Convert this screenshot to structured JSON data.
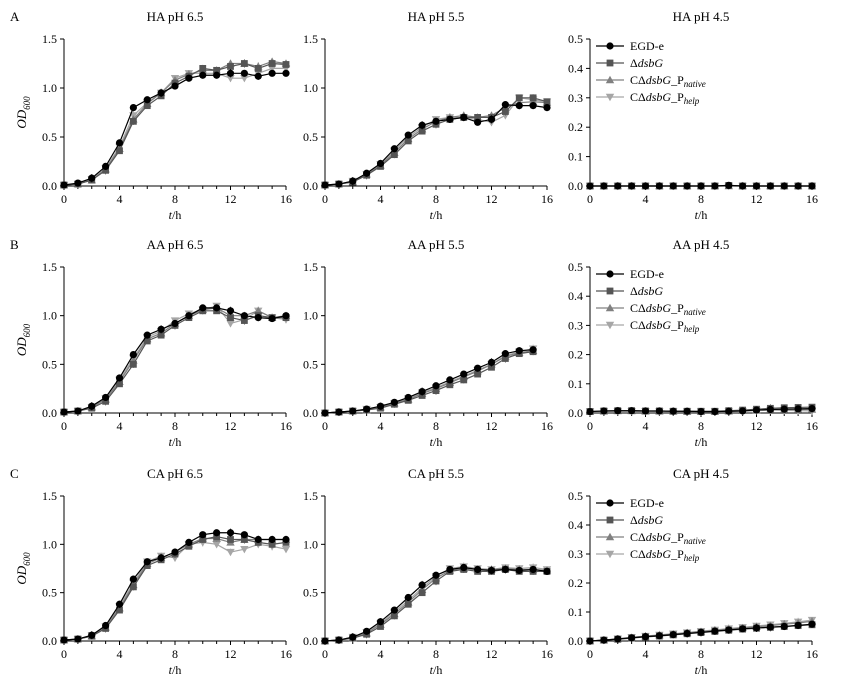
{
  "figure": {
    "row_letters": [
      "A",
      "B",
      "C"
    ],
    "y_axis_label": "OD",
    "y_axis_label_sub": "600",
    "x_axis_label_var": "t",
    "x_axis_label_unit": "/h",
    "legend": [
      {
        "main": "EGD-e",
        "italic": "",
        "suffix": "",
        "sub": "",
        "color": "#000000",
        "marker": "circle"
      },
      {
        "main": "Δ",
        "italic": "dsbG",
        "suffix": "",
        "sub": "",
        "color": "#555555",
        "marker": "square"
      },
      {
        "main": "CΔ",
        "italic": "dsbG",
        "suffix": "_P",
        "sub": "native",
        "color": "#808080",
        "marker": "triangle-up"
      },
      {
        "main": "CΔ",
        "italic": "dsbG",
        "suffix": "_P",
        "sub": "help",
        "color": "#a6a6a6",
        "marker": "triangle-down"
      }
    ]
  },
  "chart_data": [
    {
      "type": "line",
      "title": "HA pH 6.5",
      "ylim": [
        0,
        1.5
      ],
      "yticks": [
        "0.0",
        "0.5",
        "1.0",
        "1.5"
      ],
      "xlim": [
        0,
        16
      ],
      "xticks": [
        0,
        4,
        8,
        12,
        16
      ],
      "x": [
        0,
        1,
        2,
        3,
        4,
        5,
        6,
        7,
        8,
        9,
        10,
        11,
        12,
        13,
        14,
        15,
        16
      ],
      "series": [
        {
          "name": "EGD-e",
          "values": [
            0.01,
            0.03,
            0.08,
            0.2,
            0.44,
            0.8,
            0.88,
            0.95,
            1.02,
            1.1,
            1.13,
            1.13,
            1.15,
            1.15,
            1.12,
            1.15,
            1.15
          ]
        },
        {
          "name": "ΔdsbG",
          "values": [
            0.01,
            0.02,
            0.06,
            0.16,
            0.36,
            0.66,
            0.82,
            0.92,
            1.05,
            1.12,
            1.2,
            1.18,
            1.22,
            1.25,
            1.2,
            1.25,
            1.24
          ]
        },
        {
          "name": "CΔdsbG_Pnative",
          "values": [
            0.01,
            0.02,
            0.06,
            0.17,
            0.38,
            0.68,
            0.84,
            0.95,
            1.08,
            1.14,
            1.18,
            1.18,
            1.25,
            1.25,
            1.22,
            1.27,
            1.25
          ]
        },
        {
          "name": "CΔdsbG_Phelp",
          "values": [
            0.01,
            0.02,
            0.07,
            0.18,
            0.4,
            0.72,
            0.85,
            0.95,
            1.1,
            1.15,
            1.15,
            1.15,
            1.1,
            1.1,
            1.15,
            1.2,
            1.2
          ]
        }
      ]
    },
    {
      "type": "line",
      "title": "HA pH 5.5",
      "ylim": [
        0,
        1.5
      ],
      "yticks": [
        "0.0",
        "0.5",
        "1.0",
        "1.5"
      ],
      "xlim": [
        0,
        16
      ],
      "xticks": [
        0,
        4,
        8,
        12,
        16
      ],
      "x": [
        0,
        1,
        2,
        3,
        4,
        5,
        6,
        7,
        8,
        9,
        10,
        11,
        12,
        13,
        14,
        15,
        16
      ],
      "series": [
        {
          "name": "EGD-e",
          "values": [
            0.01,
            0.02,
            0.05,
            0.13,
            0.23,
            0.38,
            0.52,
            0.62,
            0.66,
            0.68,
            0.7,
            0.65,
            0.68,
            0.83,
            0.82,
            0.82,
            0.8
          ]
        },
        {
          "name": "ΔdsbG",
          "values": [
            0.01,
            0.02,
            0.04,
            0.11,
            0.2,
            0.32,
            0.46,
            0.56,
            0.63,
            0.68,
            0.7,
            0.7,
            0.7,
            0.76,
            0.9,
            0.9,
            0.86
          ]
        },
        {
          "name": "CΔdsbG_Pnative",
          "values": [
            0.01,
            0.02,
            0.04,
            0.12,
            0.21,
            0.34,
            0.48,
            0.58,
            0.66,
            0.7,
            0.72,
            0.7,
            0.72,
            0.8,
            0.85,
            0.86,
            0.85
          ]
        },
        {
          "name": "CΔdsbG_Phelp",
          "values": [
            0.01,
            0.02,
            0.05,
            0.12,
            0.22,
            0.36,
            0.5,
            0.6,
            0.68,
            0.7,
            0.7,
            0.68,
            0.65,
            0.72,
            0.9,
            0.88,
            0.86
          ]
        }
      ]
    },
    {
      "type": "line",
      "title": "HA pH 4.5",
      "ylim": [
        0,
        0.5
      ],
      "yticks": [
        "0.0",
        "0.1",
        "0.2",
        "0.3",
        "0.4",
        "0.5"
      ],
      "xlim": [
        0,
        16
      ],
      "xticks": [
        0,
        4,
        8,
        12,
        16
      ],
      "x": [
        0,
        1,
        2,
        3,
        4,
        5,
        6,
        7,
        8,
        9,
        10,
        11,
        12,
        13,
        14,
        15,
        16
      ],
      "series": [
        {
          "name": "EGD-e",
          "values": [
            0,
            0,
            0,
            0,
            0,
            0,
            0,
            0,
            0,
            0,
            0.002,
            0,
            0,
            0,
            0,
            0,
            0
          ]
        },
        {
          "name": "ΔdsbG",
          "values": [
            0,
            0,
            0,
            0,
            0,
            0,
            0,
            0,
            0,
            0,
            0.002,
            0,
            0,
            0,
            0,
            0,
            0
          ]
        },
        {
          "name": "CΔdsbG_Pnative",
          "values": [
            0,
            0,
            0,
            0,
            0,
            0,
            0,
            0,
            0,
            0,
            0,
            0,
            0,
            0,
            0,
            0,
            0
          ]
        },
        {
          "name": "CΔdsbG_Phelp",
          "values": [
            0,
            0,
            0,
            0,
            0,
            0,
            0,
            0,
            0,
            0,
            0,
            0,
            0,
            0,
            0,
            0,
            0
          ]
        }
      ]
    },
    {
      "type": "line",
      "title": "AA pH 6.5",
      "ylim": [
        0,
        1.5
      ],
      "yticks": [
        "0.0",
        "0.5",
        "1.0",
        "1.5"
      ],
      "xlim": [
        0,
        16
      ],
      "xticks": [
        0,
        4,
        8,
        12,
        16
      ],
      "x": [
        0,
        1,
        2,
        3,
        4,
        5,
        6,
        7,
        8,
        9,
        10,
        11,
        12,
        13,
        14,
        15,
        16
      ],
      "series": [
        {
          "name": "EGD-e",
          "values": [
            0.01,
            0.02,
            0.07,
            0.16,
            0.36,
            0.6,
            0.8,
            0.86,
            0.92,
            1.0,
            1.08,
            1.08,
            1.05,
            1.0,
            0.98,
            0.97,
            1.0
          ]
        },
        {
          "name": "ΔdsbG",
          "values": [
            0.01,
            0.02,
            0.05,
            0.12,
            0.3,
            0.5,
            0.74,
            0.8,
            0.9,
            0.98,
            1.05,
            1.05,
            0.98,
            0.95,
            1.0,
            0.98,
            0.98
          ]
        },
        {
          "name": "CΔdsbG_Pnative",
          "values": [
            0.01,
            0.02,
            0.06,
            0.14,
            0.32,
            0.54,
            0.76,
            0.82,
            0.92,
            1.0,
            1.06,
            1.08,
            1.0,
            1.0,
            1.05,
            0.98,
            1.0
          ]
        },
        {
          "name": "CΔdsbG_Phelp",
          "values": [
            0.01,
            0.02,
            0.06,
            0.15,
            0.34,
            0.56,
            0.78,
            0.84,
            0.95,
            1.02,
            1.06,
            1.1,
            0.92,
            0.96,
            1.05,
            0.98,
            0.96
          ]
        }
      ]
    },
    {
      "type": "line",
      "title": "AA pH 5.5",
      "ylim": [
        0,
        1.5
      ],
      "yticks": [
        "0.0",
        "0.5",
        "1.0",
        "1.5"
      ],
      "xlim": [
        0,
        16
      ],
      "xticks": [
        0,
        4,
        8,
        12,
        16
      ],
      "x": [
        0,
        1,
        2,
        3,
        4,
        5,
        6,
        7,
        8,
        9,
        10,
        11,
        12,
        13,
        14,
        15
      ],
      "series": [
        {
          "name": "EGD-e",
          "values": [
            0,
            0.01,
            0.02,
            0.04,
            0.07,
            0.11,
            0.16,
            0.22,
            0.28,
            0.34,
            0.4,
            0.46,
            0.52,
            0.61,
            0.64,
            0.65
          ]
        },
        {
          "name": "ΔdsbG",
          "values": [
            0,
            0.01,
            0.02,
            0.03,
            0.05,
            0.09,
            0.13,
            0.18,
            0.23,
            0.29,
            0.34,
            0.4,
            0.47,
            0.56,
            0.61,
            0.63
          ]
        },
        {
          "name": "CΔdsbG_Pnative",
          "values": [
            0,
            0.01,
            0.02,
            0.03,
            0.06,
            0.1,
            0.14,
            0.2,
            0.25,
            0.31,
            0.37,
            0.43,
            0.5,
            0.58,
            0.62,
            0.64
          ]
        },
        {
          "name": "CΔdsbG_Phelp",
          "values": [
            0,
            0.01,
            0.02,
            0.04,
            0.06,
            0.1,
            0.15,
            0.21,
            0.26,
            0.32,
            0.38,
            0.44,
            0.5,
            0.59,
            0.63,
            0.66
          ]
        }
      ]
    },
    {
      "type": "line",
      "title": "AA pH 4.5",
      "ylim": [
        0,
        0.5
      ],
      "yticks": [
        "0.0",
        "0.1",
        "0.2",
        "0.3",
        "0.4",
        "0.5"
      ],
      "xlim": [
        0,
        16
      ],
      "xticks": [
        0,
        4,
        8,
        12,
        16
      ],
      "x": [
        0,
        1,
        2,
        3,
        4,
        5,
        6,
        7,
        8,
        9,
        10,
        11,
        12,
        13,
        14,
        15,
        16
      ],
      "series": [
        {
          "name": "EGD-e",
          "values": [
            0.005,
            0.007,
            0.008,
            0.008,
            0.007,
            0.007,
            0.006,
            0.006,
            0.005,
            0.005,
            0.006,
            0.007,
            0.01,
            0.012,
            0.013,
            0.014,
            0.015
          ]
        },
        {
          "name": "ΔdsbG",
          "values": [
            0.005,
            0.007,
            0.008,
            0.008,
            0.007,
            0.007,
            0.006,
            0.006,
            0.006,
            0.006,
            0.008,
            0.01,
            0.013,
            0.016,
            0.018,
            0.019,
            0.02
          ]
        },
        {
          "name": "CΔdsbG_Pnative",
          "values": [
            0.005,
            0.006,
            0.007,
            0.007,
            0.006,
            0.006,
            0.006,
            0.005,
            0.005,
            0.005,
            0.006,
            0.008,
            0.01,
            0.012,
            0.012,
            0.012,
            0.012
          ]
        },
        {
          "name": "CΔdsbG_Phelp",
          "values": [
            0.005,
            0.006,
            0.006,
            0.006,
            0.006,
            0.005,
            0.005,
            0.005,
            0.005,
            0.005,
            0.005,
            0.006,
            0.008,
            0.01,
            0.009,
            0.008,
            0.007
          ]
        }
      ]
    },
    {
      "type": "line",
      "title": "CA pH 6.5",
      "ylim": [
        0,
        1.5
      ],
      "yticks": [
        "0.0",
        "0.5",
        "1.0",
        "1.5"
      ],
      "xlim": [
        0,
        16
      ],
      "xticks": [
        0,
        4,
        8,
        12,
        16
      ],
      "x": [
        0,
        1,
        2,
        3,
        4,
        5,
        6,
        7,
        8,
        9,
        10,
        11,
        12,
        13,
        14,
        15,
        16
      ],
      "series": [
        {
          "name": "EGD-e",
          "values": [
            0.01,
            0.02,
            0.06,
            0.16,
            0.38,
            0.64,
            0.82,
            0.86,
            0.92,
            1.02,
            1.1,
            1.12,
            1.12,
            1.1,
            1.05,
            1.05,
            1.05
          ]
        },
        {
          "name": "ΔdsbG",
          "values": [
            0.01,
            0.02,
            0.05,
            0.13,
            0.32,
            0.56,
            0.78,
            0.84,
            0.9,
            0.98,
            1.05,
            1.08,
            1.05,
            1.05,
            1.02,
            1.0,
            1.02
          ]
        },
        {
          "name": "CΔdsbG_Pnative",
          "values": [
            0.01,
            0.02,
            0.05,
            0.14,
            0.34,
            0.58,
            0.8,
            0.86,
            0.92,
            1.0,
            1.06,
            1.06,
            1.02,
            1.05,
            1.05,
            1.05,
            1.05
          ]
        },
        {
          "name": "CΔdsbG_Phelp",
          "values": [
            0.01,
            0.02,
            0.06,
            0.15,
            0.36,
            0.6,
            0.82,
            0.88,
            0.86,
            1.0,
            1.02,
            1.0,
            0.92,
            0.95,
            1.0,
            0.98,
            0.95
          ]
        }
      ]
    },
    {
      "type": "line",
      "title": "CA pH 5.5",
      "ylim": [
        0,
        1.5
      ],
      "yticks": [
        "0.0",
        "0.5",
        "1.0",
        "1.5"
      ],
      "xlim": [
        0,
        16
      ],
      "xticks": [
        0,
        4,
        8,
        12,
        16
      ],
      "x": [
        0,
        1,
        2,
        3,
        4,
        5,
        6,
        7,
        8,
        9,
        10,
        11,
        12,
        13,
        14,
        15,
        16
      ],
      "series": [
        {
          "name": "EGD-e",
          "values": [
            0.0,
            0.01,
            0.04,
            0.1,
            0.2,
            0.32,
            0.45,
            0.58,
            0.68,
            0.74,
            0.76,
            0.74,
            0.73,
            0.74,
            0.73,
            0.74,
            0.72
          ]
        },
        {
          "name": "ΔdsbG",
          "values": [
            0.0,
            0.01,
            0.03,
            0.07,
            0.15,
            0.26,
            0.38,
            0.5,
            0.62,
            0.72,
            0.74,
            0.72,
            0.72,
            0.74,
            0.72,
            0.72,
            0.72
          ]
        },
        {
          "name": "CΔdsbG_Pnative",
          "values": [
            0.0,
            0.01,
            0.03,
            0.08,
            0.17,
            0.28,
            0.4,
            0.53,
            0.65,
            0.73,
            0.75,
            0.74,
            0.74,
            0.75,
            0.74,
            0.74,
            0.73
          ]
        },
        {
          "name": "CΔdsbG_Phelp",
          "values": [
            0.0,
            0.01,
            0.04,
            0.09,
            0.18,
            0.3,
            0.42,
            0.55,
            0.67,
            0.75,
            0.77,
            0.75,
            0.74,
            0.76,
            0.75,
            0.76,
            0.74
          ]
        }
      ]
    },
    {
      "type": "line",
      "title": "CA pH 4.5",
      "ylim": [
        0,
        0.5
      ],
      "yticks": [
        "0.0",
        "0.1",
        "0.2",
        "0.3",
        "0.4",
        "0.5"
      ],
      "xlim": [
        0,
        16
      ],
      "xticks": [
        0,
        4,
        8,
        12,
        16
      ],
      "x": [
        0,
        1,
        2,
        3,
        4,
        5,
        6,
        7,
        8,
        9,
        10,
        11,
        12,
        13,
        14,
        15,
        16
      ],
      "series": [
        {
          "name": "EGD-e",
          "values": [
            0.0,
            0.003,
            0.007,
            0.011,
            0.015,
            0.018,
            0.022,
            0.026,
            0.03,
            0.034,
            0.038,
            0.042,
            0.045,
            0.048,
            0.05,
            0.054,
            0.058
          ]
        },
        {
          "name": "ΔdsbG",
          "values": [
            0.0,
            0.003,
            0.006,
            0.01,
            0.014,
            0.017,
            0.021,
            0.025,
            0.029,
            0.033,
            0.037,
            0.041,
            0.044,
            0.047,
            0.05,
            0.053,
            0.056
          ]
        },
        {
          "name": "CΔdsbG_Pnative",
          "values": [
            0.0,
            0.003,
            0.007,
            0.012,
            0.016,
            0.02,
            0.024,
            0.028,
            0.032,
            0.037,
            0.041,
            0.045,
            0.049,
            0.053,
            0.058,
            0.062,
            0.068
          ]
        },
        {
          "name": "CΔdsbG_Phelp",
          "values": [
            0.0,
            0.003,
            0.008,
            0.013,
            0.017,
            0.021,
            0.025,
            0.029,
            0.034,
            0.038,
            0.043,
            0.047,
            0.052,
            0.056,
            0.061,
            0.066,
            0.072
          ]
        }
      ]
    }
  ]
}
